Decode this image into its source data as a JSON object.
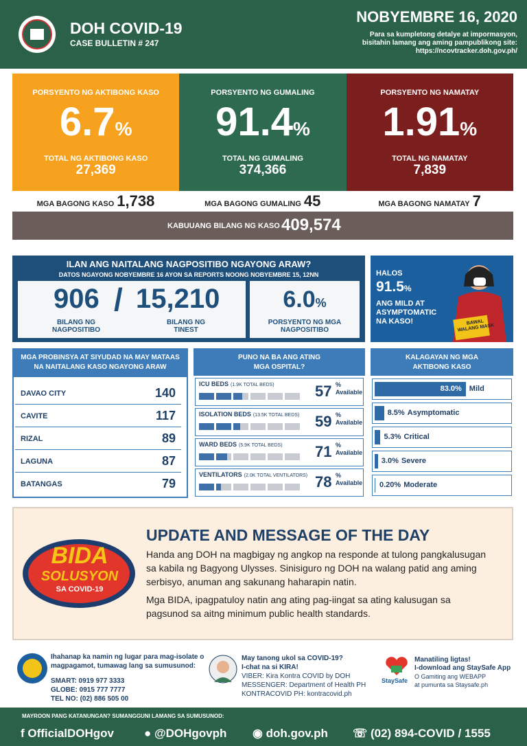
{
  "header": {
    "title": "DOH COVID-19",
    "subtitle": "CASE BULLETIN # 247",
    "date": "NOBYEMBRE 16, 2020",
    "note_1": "Para sa kumpletong detalye at impormasyon,",
    "note_2": "bisitahin lamang ang aming pampublikong site:",
    "url": "https://ncovtracker.doh.gov.ph/"
  },
  "summary": [
    {
      "label": "PORSYENTO NG AKTIBONG KASO",
      "percent": "6.7",
      "unit": "%",
      "total_label": "TOTAL NG AKTIBONG KASO",
      "total": "27,369",
      "new_label": "MGA BAGONG KASO",
      "new": "1,738"
    },
    {
      "label": "PORSYENTO NG GUMALING",
      "percent": "91.4",
      "unit": "%",
      "total_label": "TOTAL NG GUMALING",
      "total": "374,366",
      "new_label": "MGA BAGONG GUMALING",
      "new": "45"
    },
    {
      "label": "PORSYENTO NG NAMATAY",
      "percent": "1.91",
      "unit": "%",
      "total_label": "TOTAL NG NAMATAY",
      "total": "7,839",
      "new_label": "MGA BAGONG NAMATAY",
      "new": "7"
    }
  ],
  "total": {
    "label": "KABUUANG BILANG NG KASO",
    "value": "409,574"
  },
  "testing": {
    "title": "ILAN ANG NAITALANG NAGPOSITIBO NGAYONG ARAW?",
    "subtitle": "DATOS NGAYONG NOBYEMBRE 16 AYON SA REPORTS NOONG NOBYEMBRE 15, 12NN",
    "positive": "906",
    "separator": "/",
    "positive_label_1": "BILANG NG",
    "positive_label_2": "NAGPOSITIBO",
    "tested": "15,210",
    "tested_label_1": "BILANG NG",
    "tested_label_2": "TINEST",
    "rate": "6.0",
    "unit": "%",
    "rate_label_1": "PORSYENTO NG MGA",
    "rate_label_2": "NAGPOSITIBO"
  },
  "promo": {
    "line_1": "HALOS",
    "percent": "91.5",
    "unit": "%",
    "line_2": "ANG MILD AT",
    "line_3": "ASYMPTOMATIC",
    "line_4": "NA KASO!",
    "sign": "BAWAL WALANG MASK"
  },
  "provinces": {
    "title_1": "MGA PROBINSYA AT SIYUDAD NA MAY MATAAS",
    "title_2": "NA NAITALANG KASO NGAYONG ARAW",
    "rows": [
      [
        "DAVAO CITY",
        "140"
      ],
      [
        "CAVITE",
        "117"
      ],
      [
        "RIZAL",
        "89"
      ],
      [
        "LAGUNA",
        "87"
      ],
      [
        "BATANGAS",
        "79"
      ]
    ]
  },
  "hospitals": {
    "title_1": "PUNO NA BA ANG ATING",
    "title_2": "MGA OSPITAL?",
    "items": [
      {
        "name": "ICU BEDS",
        "capacity": "(1.9K TOTAL BEDS)",
        "percent": 57,
        "unit": "%",
        "status": "Available"
      },
      {
        "name": "ISOLATION BEDS",
        "capacity": "(13.5K TOTAL BEDS)",
        "percent": 59,
        "unit": "%",
        "status": "Available"
      },
      {
        "name": "WARD BEDS",
        "capacity": "(5.9K TOTAL BEDS)",
        "percent": 71,
        "unit": "%",
        "status": "Available"
      },
      {
        "name": "VENTILATORS",
        "capacity": "(2.0K TOTAL VENTILATORS)",
        "percent": 78,
        "unit": "%",
        "status": "Available"
      }
    ]
  },
  "status": {
    "title_1": "KALAGAYAN NG MGA",
    "title_2": "AKTIBONG KASO",
    "values": [
      83.0,
      8.5,
      5.3,
      3.0,
      0.2
    ],
    "value_labels": [
      "83.0%",
      "8.5%",
      "5.3%",
      "3.0%",
      "0.20%"
    ],
    "names": [
      "Mild",
      "Asymptomatic",
      "Critical",
      "Severe",
      "Moderate"
    ]
  },
  "message": {
    "title": "UPDATE AND MESSAGE OF THE DAY",
    "paragraph_1": "Handa ang DOH na magbigay ng angkop na responde at tulong pangkalusugan sa kabila ng Bagyong Ulysses. Sinisiguro ng DOH na walang patid ang aming serbisyo, anuman ang sakunang haharapin natin.",
    "paragraph_2": "Mga BIDA, ipagpatuloy natin ang ating pag-iingat sa ating kalusugan sa pagsunod sa aitng minimum public health standards.",
    "logo_1": "BIDA",
    "logo_2": "SOLUSYON",
    "logo_3": "SA COVID-19"
  },
  "contacts": {
    "isolation": {
      "text": "Ihahanap ka namin ng lugar para mag-isolate o magpagamot, tumawag lang sa sumusunod:",
      "smart": "SMART: 0919 977 3333",
      "globe": "GLOBE: 0915 777 7777",
      "tel": "TEL NO: (02) 886 505 00"
    },
    "kira": {
      "line_1": "May tanong ukol sa COVID-19?",
      "line_2": "I-chat na si KIRA!",
      "viber": "VIBER: Kira Kontra COVID by DOH",
      "messenger": "MESSENGER: Department of Health PH",
      "kontracovid": "KONTRACOVID PH: kontracovid.ph"
    },
    "staysafe": {
      "line_1": "Manatiling ligtas!",
      "line_2": "I-download ang StaySafe App",
      "line_3": "O Gamiting ang WEBAPP",
      "line_4": "at pumunta sa Staysafe.ph",
      "logo": "StaySafe"
    }
  },
  "footer": {
    "prompt": "MAYROON PANG KATANUNGAN? SUMANGGUNI LAMANG SA SUMUSUNOD:",
    "facebook": "OfficialDOHgov",
    "twitter": "@DOHgovph",
    "website": "doh.gov.ph",
    "hotline": "(02) 894-COVID / 1555"
  }
}
